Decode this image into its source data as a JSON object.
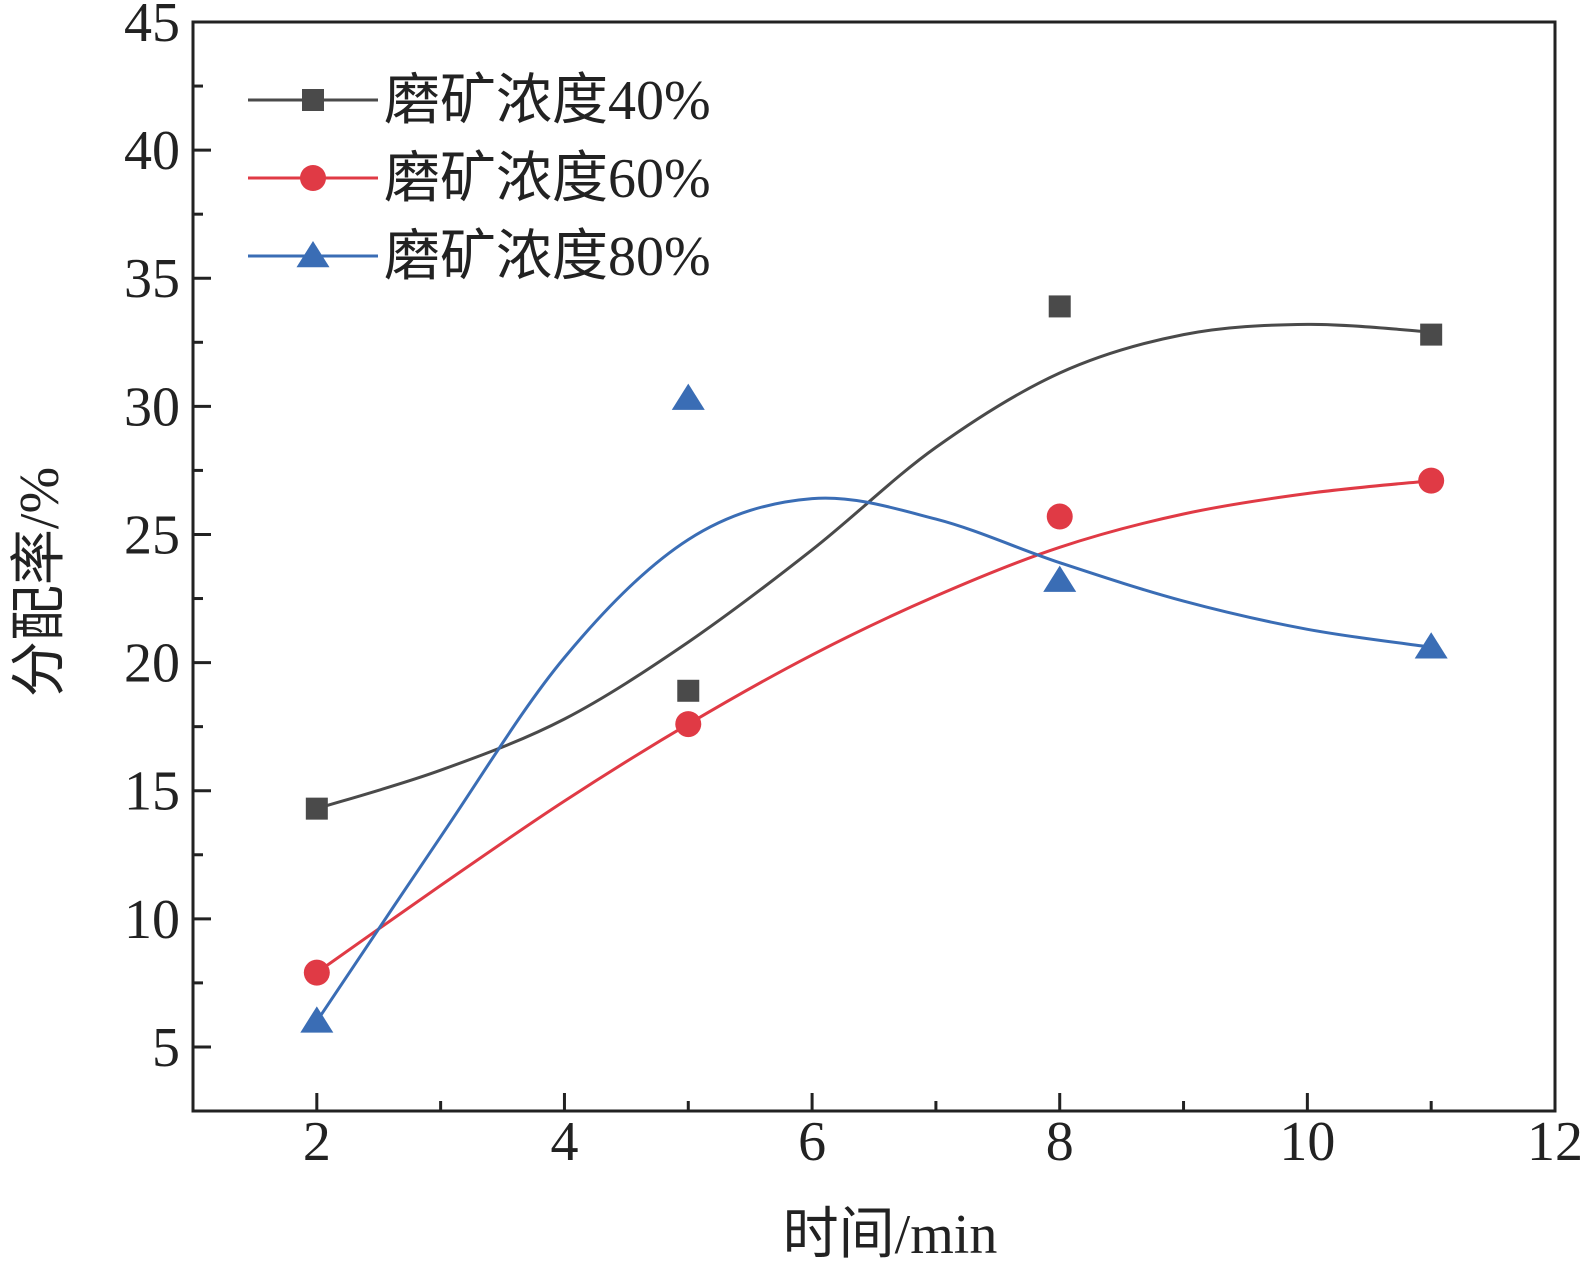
{
  "chart_data": {
    "type": "scatter",
    "title": "",
    "xlabel": "时间/min",
    "ylabel": "分配率/%",
    "xlim": [
      1,
      12
    ],
    "ylim": [
      2.5,
      45
    ],
    "xticks": [
      2,
      4,
      6,
      8,
      10,
      12
    ],
    "yticks": [
      5,
      10,
      15,
      20,
      25,
      30,
      35,
      40,
      45
    ],
    "grid": false,
    "legend_position": "top-left",
    "x": [
      2,
      5,
      8,
      11
    ],
    "series": [
      {
        "name": "磨矿浓度40%",
        "marker": "square",
        "color": "#4a4a4a",
        "values": [
          14.3,
          18.9,
          33.9,
          32.8
        ],
        "fit_curve": [
          [
            2,
            14.3
          ],
          [
            3,
            15.8
          ],
          [
            4,
            17.8
          ],
          [
            5,
            20.8
          ],
          [
            6,
            24.4
          ],
          [
            7,
            28.4
          ],
          [
            8,
            31.3
          ],
          [
            9,
            32.8
          ],
          [
            10,
            33.2
          ],
          [
            11,
            32.9
          ]
        ]
      },
      {
        "name": "磨矿浓度60%",
        "marker": "circle",
        "color": "#e03a45",
        "values": [
          7.9,
          17.6,
          25.7,
          27.1
        ],
        "fit_curve": [
          [
            2,
            7.9
          ],
          [
            3,
            11.3
          ],
          [
            4,
            14.6
          ],
          [
            5,
            17.6
          ],
          [
            6,
            20.3
          ],
          [
            7,
            22.6
          ],
          [
            8,
            24.5
          ],
          [
            9,
            25.8
          ],
          [
            10,
            26.6
          ],
          [
            11,
            27.1
          ]
        ]
      },
      {
        "name": "磨矿浓度80%",
        "marker": "triangle",
        "color": "#3a6db5",
        "values": [
          6.0,
          30.3,
          23.2,
          20.6
        ],
        "fit_curve": [
          [
            2,
            6.0
          ],
          [
            3,
            13.2
          ],
          [
            4,
            20.2
          ],
          [
            5,
            24.8
          ],
          [
            6,
            26.4
          ],
          [
            7,
            25.6
          ],
          [
            8,
            23.9
          ],
          [
            9,
            22.4
          ],
          [
            10,
            21.3
          ],
          [
            11,
            20.6
          ]
        ]
      }
    ]
  }
}
